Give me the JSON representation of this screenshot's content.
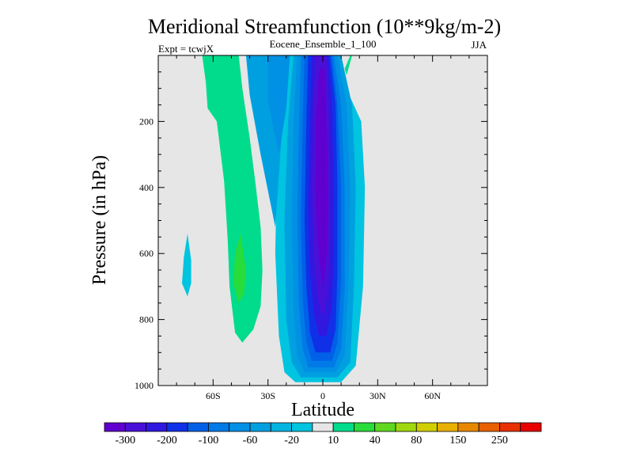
{
  "chart_data": {
    "type": "contour",
    "title": "Meridional Streamfunction (10**9kg/m-2)",
    "subtitle": "Eocene_Ensemble_1_100",
    "left_label": "Expt = tcwjX",
    "right_label": "JJA",
    "xlabel": "Latitude",
    "ylabel": "Pressure (in hPa)",
    "xlim": [
      -90,
      90
    ],
    "ylim": [
      0,
      1000
    ],
    "y_inverted": true,
    "x_ticks": [
      {
        "value": -60,
        "label": "60S"
      },
      {
        "value": -30,
        "label": "30S"
      },
      {
        "value": 0,
        "label": "0"
      },
      {
        "value": 30,
        "label": "30N"
      },
      {
        "value": 60,
        "label": "60N"
      }
    ],
    "y_ticks": [
      {
        "value": 200,
        "label": "200"
      },
      {
        "value": 400,
        "label": "400"
      },
      {
        "value": 600,
        "label": "600"
      },
      {
        "value": 800,
        "label": "800"
      },
      {
        "value": 1000,
        "label": "1000"
      }
    ],
    "background_color": "#e6e6e6",
    "contour_fields": [
      {
        "name": "equatorial-cell-outer",
        "level": -20,
        "color": "#00c4e0",
        "points": [
          [
            -15,
            990
          ],
          [
            10,
            990
          ],
          [
            18,
            940
          ],
          [
            22,
            700
          ],
          [
            23,
            400
          ],
          [
            21,
            200
          ],
          [
            12,
            90
          ],
          [
            8,
            0
          ],
          [
            -18,
            0
          ],
          [
            -22,
            100
          ],
          [
            -25,
            300
          ],
          [
            -26,
            600
          ],
          [
            -24,
            850
          ],
          [
            -21,
            960
          ]
        ]
      },
      {
        "name": "southern-shoulder",
        "level": -40,
        "color": "#00a0e0",
        "points": [
          [
            -26,
            520
          ],
          [
            -34,
            300
          ],
          [
            -40,
            120
          ],
          [
            -42,
            0
          ],
          [
            -18,
            0
          ],
          [
            -22,
            200
          ]
        ]
      },
      {
        "name": "southern-shoulder-inner",
        "level": -60,
        "color": "#0090e4",
        "points": [
          [
            -24,
            300
          ],
          [
            -30,
            140
          ],
          [
            -30,
            0
          ],
          [
            -18,
            0
          ],
          [
            -20,
            160
          ]
        ]
      },
      {
        "name": "equatorial-cell-l40",
        "level": -40,
        "color": "#00a0e0",
        "points": [
          [
            -12,
            975
          ],
          [
            8,
            975
          ],
          [
            15,
            930
          ],
          [
            17,
            700
          ],
          [
            18,
            400
          ],
          [
            16,
            150
          ],
          [
            10,
            0
          ],
          [
            -16,
            0
          ],
          [
            -19,
            200
          ],
          [
            -21,
            500
          ],
          [
            -20,
            800
          ],
          [
            -17,
            930
          ]
        ]
      },
      {
        "name": "equatorial-cell-l60",
        "level": -60,
        "color": "#0090e4",
        "points": [
          [
            -10,
            960
          ],
          [
            7,
            960
          ],
          [
            12,
            910
          ],
          [
            14,
            700
          ],
          [
            15,
            400
          ],
          [
            13,
            150
          ],
          [
            8,
            0
          ],
          [
            -14,
            0
          ],
          [
            -16,
            200
          ],
          [
            -17,
            500
          ],
          [
            -16,
            780
          ],
          [
            -14,
            910
          ]
        ]
      },
      {
        "name": "equatorial-cell-l80",
        "level": -80,
        "color": "#007ae6",
        "points": [
          [
            -8,
            945
          ],
          [
            6,
            945
          ],
          [
            10,
            890
          ],
          [
            12,
            700
          ],
          [
            12,
            400
          ],
          [
            10,
            150
          ],
          [
            6,
            0
          ],
          [
            -12,
            0
          ],
          [
            -13,
            200
          ],
          [
            -14,
            500
          ],
          [
            -13,
            760
          ],
          [
            -11,
            890
          ]
        ]
      },
      {
        "name": "equatorial-cell-l100",
        "level": -100,
        "color": "#0060e8",
        "points": [
          [
            -6,
            925
          ],
          [
            5,
            925
          ],
          [
            8,
            870
          ],
          [
            10,
            680
          ],
          [
            10,
            400
          ],
          [
            8,
            150
          ],
          [
            5,
            0
          ],
          [
            -10,
            0
          ],
          [
            -11,
            200
          ],
          [
            -12,
            500
          ],
          [
            -11,
            740
          ],
          [
            -9,
            870
          ]
        ]
      },
      {
        "name": "equatorial-cell-l150",
        "level": -150,
        "color": "#1030e8",
        "points": [
          [
            -4,
            900
          ],
          [
            4,
            900
          ],
          [
            7,
            830
          ],
          [
            8,
            650
          ],
          [
            8,
            400
          ],
          [
            7,
            150
          ],
          [
            4,
            0
          ],
          [
            -8,
            0
          ],
          [
            -9,
            200
          ],
          [
            -10,
            500
          ],
          [
            -9,
            700
          ],
          [
            -7,
            840
          ]
        ]
      },
      {
        "name": "equatorial-cell-l200",
        "level": -200,
        "color": "#3018e0",
        "points": [
          [
            -2,
            850
          ],
          [
            2,
            850
          ],
          [
            5,
            760
          ],
          [
            6,
            600
          ],
          [
            6,
            400
          ],
          [
            5,
            150
          ],
          [
            3,
            0
          ],
          [
            -6,
            0
          ],
          [
            -7,
            200
          ],
          [
            -8,
            450
          ],
          [
            -7,
            650
          ],
          [
            -5,
            780
          ]
        ]
      },
      {
        "name": "equatorial-cell-l250",
        "level": -250,
        "color": "#4a10d8",
        "points": [
          [
            -1,
            780
          ],
          [
            1,
            780
          ],
          [
            3,
            700
          ],
          [
            4,
            550
          ],
          [
            4,
            350
          ],
          [
            3,
            120
          ],
          [
            2,
            0
          ],
          [
            -4,
            0
          ],
          [
            -5,
            150
          ],
          [
            -6,
            400
          ],
          [
            -5,
            600
          ],
          [
            -3,
            720
          ]
        ]
      },
      {
        "name": "equatorial-cell-l300",
        "level": -300,
        "color": "#6000d0",
        "points": [
          [
            0,
            700
          ],
          [
            2,
            620
          ],
          [
            3,
            450
          ],
          [
            2,
            200
          ],
          [
            1,
            40
          ],
          [
            -2,
            40
          ],
          [
            -4,
            200
          ],
          [
            -4,
            450
          ],
          [
            -2,
            620
          ]
        ]
      },
      {
        "name": "southern-positive-band",
        "level": 10,
        "color": "#00dc8c",
        "points": [
          [
            -53,
            0
          ],
          [
            -46,
            0
          ],
          [
            -44,
            100
          ],
          [
            -40,
            250
          ],
          [
            -37,
            380
          ],
          [
            -34,
            520
          ],
          [
            -33,
            650
          ],
          [
            -34,
            760
          ],
          [
            -38,
            830
          ],
          [
            -44,
            870
          ],
          [
            -48,
            840
          ],
          [
            -51,
            700
          ],
          [
            -52,
            560
          ],
          [
            -54,
            380
          ],
          [
            -58,
            200
          ],
          [
            -63,
            160
          ],
          [
            -64,
            80
          ],
          [
            -66,
            0
          ],
          [
            -60,
            0
          ]
        ]
      },
      {
        "name": "southern-positive-core",
        "level": 40,
        "color": "#28dc3c",
        "points": [
          [
            -45,
            540
          ],
          [
            -42,
            650
          ],
          [
            -43,
            720
          ],
          [
            -46,
            750
          ],
          [
            -49,
            690
          ],
          [
            -48,
            600
          ]
        ]
      },
      {
        "name": "small-negative-island",
        "level": -20,
        "color": "#00c4e0",
        "points": [
          [
            -74,
            540
          ],
          [
            -72,
            620
          ],
          [
            -72,
            690
          ],
          [
            -74,
            730
          ],
          [
            -77,
            690
          ],
          [
            -76,
            610
          ]
        ]
      },
      {
        "name": "northern-positive-sliver",
        "level": 10,
        "color": "#00dc8c",
        "points": [
          [
            12,
            40
          ],
          [
            15,
            0
          ],
          [
            16,
            0
          ],
          [
            13,
            60
          ]
        ]
      }
    ],
    "colorbar": {
      "colors": [
        "#6000d0",
        "#4a10d8",
        "#3018e0",
        "#1030e8",
        "#0060e8",
        "#007ae6",
        "#0090e4",
        "#00a0e0",
        "#00b4e0",
        "#00c4e0",
        "#e6e6e6",
        "#00dc8c",
        "#28dc3c",
        "#60d820",
        "#a0d810",
        "#d0d000",
        "#e8b000",
        "#e88800",
        "#e86000",
        "#e83000",
        "#e80000"
      ],
      "labels": [
        {
          "after_index": 0,
          "text": "-300"
        },
        {
          "after_index": 2,
          "text": "-200"
        },
        {
          "after_index": 4,
          "text": "-100"
        },
        {
          "after_index": 6,
          "text": "-60"
        },
        {
          "after_index": 8,
          "text": "-20"
        },
        {
          "after_index": 10,
          "text": "10"
        },
        {
          "after_index": 12,
          "text": "40"
        },
        {
          "after_index": 14,
          "text": "80"
        },
        {
          "after_index": 16,
          "text": "150"
        },
        {
          "after_index": 18,
          "text": "250"
        }
      ]
    }
  }
}
